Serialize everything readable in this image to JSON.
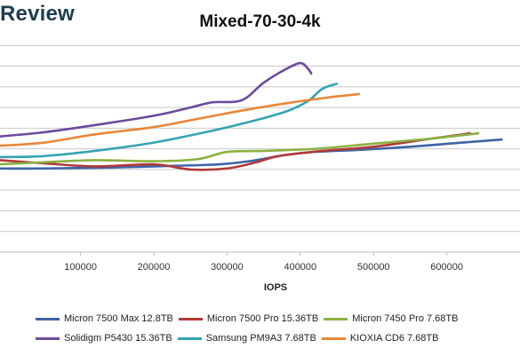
{
  "brand": {
    "text": "Review"
  },
  "chart_data": {
    "type": "line",
    "title": "Mixed-70-30-4k",
    "xlabel": "IOPS",
    "ylabel": "",
    "xlim": [
      -10000,
      700000
    ],
    "ylim": [
      0,
      11
    ],
    "x_ticks": [
      100000,
      200000,
      300000,
      400000,
      500000,
      600000
    ],
    "x_tick_labels": [
      "100000",
      "200000",
      "300000",
      "400000",
      "500000",
      "600000"
    ],
    "y_gridlines": [
      1,
      2,
      3,
      4,
      5,
      6,
      7,
      8,
      9,
      10
    ],
    "grid": true,
    "legend_position": "bottom",
    "series": [
      {
        "name": "Micron 7500 Max 12.8TB",
        "color": "#3e64a6",
        "points": [
          [
            -10000,
            4.05
          ],
          [
            50000,
            4.05
          ],
          [
            150000,
            4.1
          ],
          [
            250000,
            4.2
          ],
          [
            290000,
            4.25
          ],
          [
            330000,
            4.4
          ],
          [
            380000,
            4.7
          ],
          [
            420000,
            4.85
          ],
          [
            480000,
            4.95
          ],
          [
            550000,
            5.1
          ],
          [
            620000,
            5.3
          ],
          [
            675000,
            5.45
          ]
        ]
      },
      {
        "name": "Micron 7500 Pro 15.36TB",
        "color": "#b03a39",
        "points": [
          [
            -10000,
            4.45
          ],
          [
            50000,
            4.3
          ],
          [
            120000,
            4.15
          ],
          [
            200000,
            4.25
          ],
          [
            250000,
            4.0
          ],
          [
            300000,
            4.05
          ],
          [
            340000,
            4.35
          ],
          [
            370000,
            4.65
          ],
          [
            430000,
            4.9
          ],
          [
            500000,
            5.1
          ],
          [
            580000,
            5.5
          ],
          [
            632000,
            5.75
          ]
        ]
      },
      {
        "name": "Micron 7450 Pro 7.68TB",
        "color": "#8cb040",
        "points": [
          [
            -10000,
            4.25
          ],
          [
            50000,
            4.35
          ],
          [
            120000,
            4.45
          ],
          [
            200000,
            4.4
          ],
          [
            260000,
            4.5
          ],
          [
            300000,
            4.85
          ],
          [
            350000,
            4.9
          ],
          [
            420000,
            5.0
          ],
          [
            500000,
            5.25
          ],
          [
            580000,
            5.5
          ],
          [
            643000,
            5.75
          ]
        ]
      },
      {
        "name": "Solidigm P5430 15.36TB",
        "color": "#6b4a9c",
        "points": [
          [
            -10000,
            5.6
          ],
          [
            50000,
            5.8
          ],
          [
            120000,
            6.15
          ],
          [
            200000,
            6.6
          ],
          [
            250000,
            7.0
          ],
          [
            280000,
            7.25
          ],
          [
            320000,
            7.35
          ],
          [
            350000,
            8.2
          ],
          [
            380000,
            8.85
          ],
          [
            400000,
            9.15
          ],
          [
            410000,
            8.9
          ],
          [
            415000,
            8.65
          ]
        ]
      },
      {
        "name": "Samsung PM9A3 7.68TB",
        "color": "#35a3b4",
        "points": [
          [
            -10000,
            4.6
          ],
          [
            50000,
            4.65
          ],
          [
            120000,
            4.9
          ],
          [
            200000,
            5.3
          ],
          [
            270000,
            5.8
          ],
          [
            330000,
            6.3
          ],
          [
            380000,
            6.8
          ],
          [
            410000,
            7.3
          ],
          [
            430000,
            7.9
          ],
          [
            450000,
            8.15
          ]
        ]
      },
      {
        "name": "KIOXIA CD6 7.68TB",
        "color": "#e8863a",
        "points": [
          [
            -10000,
            5.15
          ],
          [
            50000,
            5.3
          ],
          [
            120000,
            5.7
          ],
          [
            200000,
            6.05
          ],
          [
            260000,
            6.45
          ],
          [
            320000,
            6.85
          ],
          [
            380000,
            7.2
          ],
          [
            430000,
            7.45
          ],
          [
            480000,
            7.65
          ]
        ]
      }
    ]
  }
}
